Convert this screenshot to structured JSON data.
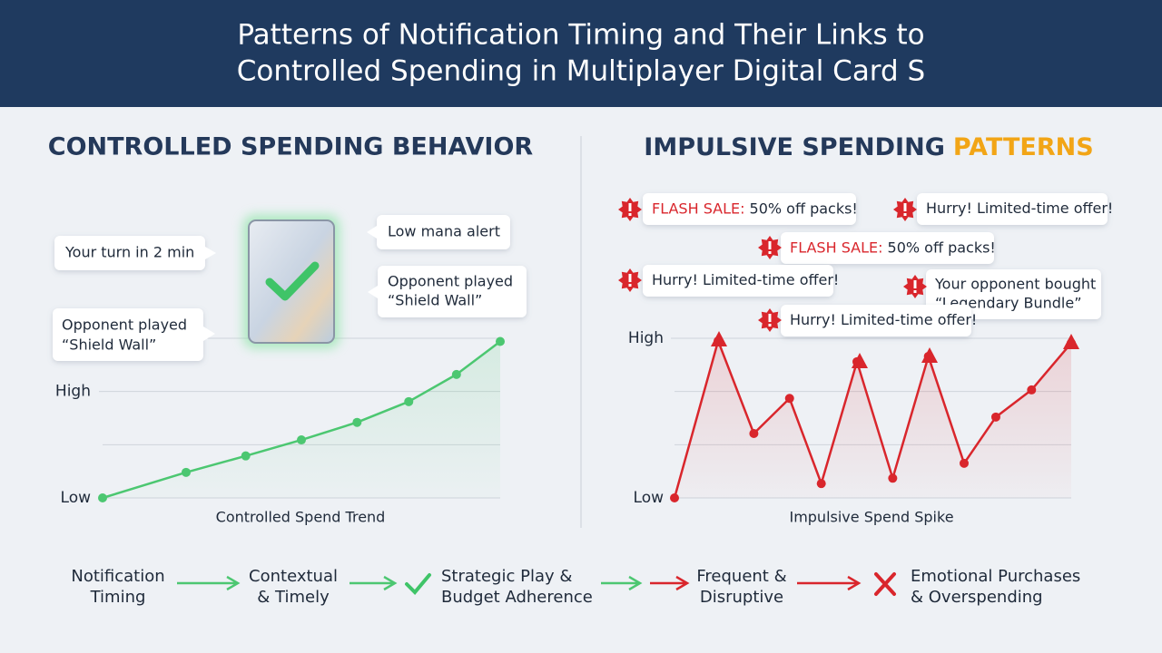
{
  "header": {
    "title": [
      "Patterns of Notification Timing and Their Links to",
      "Controlled Spending in Multiplayer Digital Card S"
    ]
  },
  "sections": {
    "left_title": "CONTROLLED SPENDING BEHAVIOR",
    "right_title": [
      "IMPULSIVE SPENDING",
      "PATTERNS"
    ]
  },
  "left_notifications": [
    {
      "lines": [
        "Your turn in 2 min"
      ]
    },
    {
      "lines": [
        "Low mana alert"
      ]
    },
    {
      "lines": [
        "Opponent played",
        "“Shield Wall”"
      ]
    },
    {
      "lines": [
        "Opponent played",
        "“Shield Wall”"
      ]
    }
  ],
  "right_notifications": [
    {
      "lines": [
        "FLASH SALE:",
        "50% off packs!"
      ]
    },
    {
      "lines": [
        "Hurry! Limited-time offer!"
      ]
    },
    {
      "lines": [
        "FLASH SALE:",
        "50% off packs!"
      ]
    },
    {
      "lines": [
        "Hurry! Limited-time offer!"
      ]
    },
    {
      "lines": [
        "Your opponent bought",
        "“Legendary Bundle”"
      ]
    },
    {
      "lines": [
        "Hurry! Limited-time offer!"
      ]
    }
  ],
  "chart_data": [
    {
      "type": "line",
      "xlabel": "Controlled Spend Trend",
      "color": "#4cc771",
      "x": [
        0,
        2.1,
        3.6,
        5.0,
        6.4,
        7.7,
        8.9,
        10
      ],
      "values": [
        0,
        0.48,
        0.79,
        1.09,
        1.42,
        1.81,
        2.32,
        2.94
      ],
      "xlim": [
        0,
        10
      ],
      "ylim": [
        0,
        3
      ],
      "yticks": [
        {
          "value": 0,
          "label": "Low"
        },
        {
          "value": 2,
          "label": "High"
        }
      ],
      "grid_step": 1
    },
    {
      "type": "line",
      "xlabel": "Impulsive Spend Spike",
      "color": "#d9262c",
      "x": [
        0,
        1.1,
        2.0,
        2.9,
        3.7,
        4.6,
        5.5,
        6.4,
        7.3,
        8.1,
        9.0,
        10
      ],
      "values": [
        0,
        2.95,
        1.21,
        1.87,
        0.27,
        2.56,
        0.37,
        2.66,
        0.65,
        1.52,
        2.03,
        2.91
      ],
      "xlim": [
        0,
        10
      ],
      "ylim": [
        0,
        3
      ],
      "yticks": [
        {
          "value": 0,
          "label": "Low"
        },
        {
          "value": 3,
          "label": "High"
        }
      ],
      "grid_step": 1
    }
  ],
  "flow": [
    {
      "lines": [
        "Notification",
        "Timing"
      ]
    },
    {
      "lines": [
        "Contextual",
        "& Timely"
      ]
    },
    {
      "lines": [
        "Strategic Play &",
        "Budget Adherence"
      ]
    },
    {
      "lines": [
        "Frequent &",
        "Disruptive"
      ]
    },
    {
      "lines": [
        "Emotional Purchases",
        "& Overspending"
      ]
    }
  ]
}
